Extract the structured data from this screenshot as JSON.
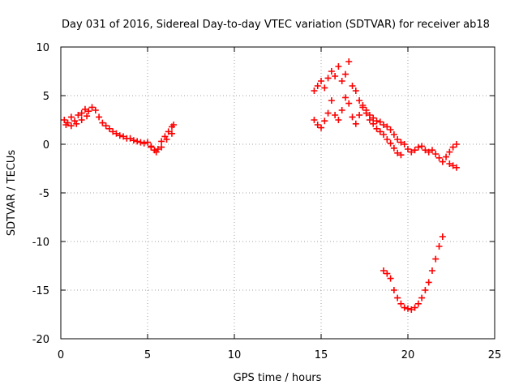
{
  "chart_data": {
    "type": "scatter",
    "title": "Day 031 of 2016, Sidereal Day-to-day VTEC variation (SDTVAR) for receiver ab18",
    "xlabel": "GPS time / hours",
    "ylabel": "SDTVAR / TECUs",
    "xlim": [
      0,
      25
    ],
    "ylim": [
      -20,
      10
    ],
    "x_ticks": [
      0,
      5,
      10,
      15,
      20,
      25
    ],
    "y_ticks": [
      -20,
      -15,
      -10,
      -5,
      0,
      5,
      10
    ],
    "x_tick_labels": [
      "0",
      "5",
      "10",
      "15",
      "20",
      "25"
    ],
    "y_tick_labels": [
      "-20",
      "-15",
      "-10",
      "-5",
      "0",
      "5",
      "10"
    ],
    "grid": true,
    "marker": "plus",
    "series_color": "#ff0000",
    "series": [
      {
        "name": "segment-1",
        "x": [
          0.2,
          0.4,
          0.6,
          0.8,
          1.0,
          1.2,
          1.4,
          1.6,
          1.8,
          2.0,
          2.2,
          2.4,
          2.6,
          2.8,
          3.0,
          3.2,
          3.4,
          3.6,
          3.8,
          4.0,
          4.2,
          4.4,
          4.6,
          4.8,
          5.0,
          5.2,
          5.4,
          5.6,
          5.8,
          6.0,
          6.2,
          6.4,
          6.5
        ],
        "y": [
          2.5,
          2.2,
          2.8,
          2.4,
          3.0,
          3.2,
          3.6,
          3.4,
          3.8,
          3.5,
          2.8,
          2.2,
          1.9,
          1.6,
          1.3,
          1.1,
          0.9,
          0.8,
          0.6,
          0.6,
          0.4,
          0.3,
          0.2,
          0.1,
          0.2,
          -0.3,
          -0.6,
          -0.5,
          0.3,
          0.8,
          1.3,
          1.8,
          2.0
        ]
      },
      {
        "name": "segment-1-lower",
        "x": [
          0.3,
          0.6,
          0.9,
          1.2,
          1.5,
          5.2,
          5.5,
          5.8,
          6.1,
          6.4
        ],
        "y": [
          2.0,
          1.9,
          2.1,
          2.5,
          2.9,
          -0.2,
          -0.8,
          -0.3,
          0.5,
          1.1
        ]
      },
      {
        "name": "segment-2",
        "x": [
          14.6,
          14.8,
          15.0,
          15.2,
          15.4,
          15.6,
          15.8,
          16.0,
          16.2,
          16.4,
          16.6,
          16.8,
          17.0,
          17.2,
          17.4,
          17.6,
          17.8,
          18.0,
          18.2,
          18.4,
          18.6,
          18.8,
          19.0,
          19.2,
          19.4,
          19.6,
          19.8,
          20.0,
          20.2,
          20.4,
          20.6,
          20.8,
          21.0,
          21.2,
          21.4,
          21.6,
          21.8,
          22.0,
          22.2,
          22.4,
          22.6,
          22.8
        ],
        "y": [
          5.5,
          6.0,
          6.5,
          5.8,
          6.8,
          7.5,
          7.0,
          8.0,
          6.5,
          7.2,
          8.5,
          6.0,
          5.5,
          4.5,
          4.0,
          3.5,
          3.0,
          2.7,
          2.4,
          2.3,
          2.0,
          1.8,
          1.5,
          1.0,
          0.5,
          0.2,
          0.0,
          -0.5,
          -0.8,
          -0.6,
          -0.3,
          -0.2,
          -0.6,
          -0.8,
          -0.6,
          -1.0,
          -1.4,
          -1.8,
          -1.3,
          -0.8,
          -0.3,
          0.0
        ]
      },
      {
        "name": "segment-2-lower",
        "x": [
          14.6,
          14.8,
          15.0,
          15.2,
          15.4,
          15.6,
          15.8,
          16.0,
          16.2,
          16.4,
          16.6,
          16.8,
          17.0,
          17.2,
          17.4,
          17.6,
          17.8,
          18.0,
          18.2,
          18.4,
          18.6,
          18.8,
          19.0,
          19.2,
          19.4,
          19.6
        ],
        "y": [
          2.5,
          2.0,
          1.7,
          2.4,
          3.2,
          4.5,
          3.0,
          2.5,
          3.5,
          4.8,
          4.2,
          2.8,
          2.1,
          3.0,
          3.8,
          3.2,
          2.5,
          2.1,
          1.6,
          1.3,
          1.0,
          0.5,
          0.1,
          -0.4,
          -0.9,
          -1.1
        ]
      },
      {
        "name": "segment-2-tail",
        "x": [
          22.4,
          22.6,
          22.8
        ],
        "y": [
          -2.0,
          -2.2,
          -2.4
        ]
      },
      {
        "name": "segment-3",
        "x": [
          18.6,
          18.8,
          19.0,
          19.2,
          19.4,
          19.6,
          19.8,
          20.0,
          20.2,
          20.4,
          20.6,
          20.8,
          21.0,
          21.2,
          21.4,
          21.6,
          21.8,
          22.0
        ],
        "y": [
          -13.0,
          -13.3,
          -13.8,
          -15.0,
          -15.8,
          -16.4,
          -16.8,
          -16.9,
          -17.0,
          -16.8,
          -16.4,
          -15.8,
          -15.0,
          -14.2,
          -13.0,
          -11.8,
          -10.5,
          -9.5
        ]
      }
    ]
  }
}
